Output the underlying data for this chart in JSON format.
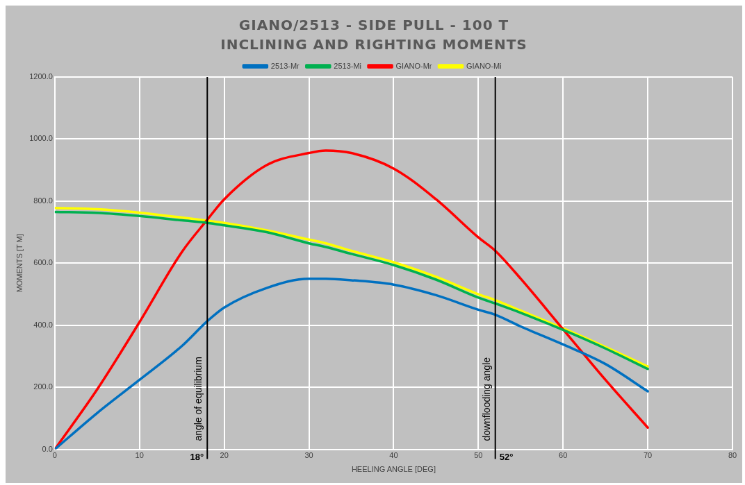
{
  "chart_data": {
    "type": "line",
    "title": "GIANO/2513 - SIDE PULL - 100 T",
    "subtitle": "INCLINING AND RIGHTING MOMENTS",
    "xlabel": "HEELING ANGLE [DEG]",
    "ylabel": "MOMENTS [T M]",
    "x": [
      0,
      5,
      10,
      15,
      18,
      20,
      25,
      30,
      32,
      35,
      40,
      45,
      50,
      52,
      55,
      60,
      65,
      70
    ],
    "series": [
      {
        "name": "2513-Mr",
        "color": "#0070c0",
        "values": [
          0,
          117,
          224,
          333,
          413,
          457,
          520,
          550,
          550,
          545,
          531,
          497,
          450,
          434,
          396,
          338,
          275,
          187
        ]
      },
      {
        "name": "2513-Mi",
        "color": "#00b050",
        "values": [
          765,
          762,
          752,
          738,
          730,
          722,
          700,
          664,
          652,
          630,
          594,
          547,
          489,
          470,
          440,
          385,
          325,
          259
        ]
      },
      {
        "name": "GIANO-Mr",
        "color": "#ff0000",
        "values": [
          0,
          193,
          410,
          636,
          740,
          806,
          916,
          955,
          963,
          955,
          905,
          806,
          683,
          640,
          550,
          387,
          224,
          70
        ]
      },
      {
        "name": "GIANO-Mi",
        "color": "#ffff00",
        "values": [
          778,
          774,
          763,
          747,
          737,
          730,
          706,
          676,
          664,
          640,
          603,
          556,
          500,
          481,
          447,
          390,
          330,
          267
        ]
      }
    ],
    "xlim": [
      0,
      80
    ],
    "xticks": [
      0,
      10,
      20,
      30,
      40,
      50,
      60,
      70,
      80
    ],
    "ylim": [
      0,
      1200
    ],
    "yticks": [
      {
        "value": 0,
        "label": "0.0"
      },
      {
        "value": 200,
        "label": "200.0"
      },
      {
        "value": 400,
        "label": "400.0"
      },
      {
        "value": 600,
        "label": "600.0"
      },
      {
        "value": 800,
        "label": "800.0"
      },
      {
        "value": 1000,
        "label": "1000.0"
      },
      {
        "value": 1200,
        "label": "1200.0"
      }
    ],
    "ref_lines": [
      {
        "axis": "x",
        "value": 18,
        "label": "angle of equilibrium",
        "color": "#000000"
      },
      {
        "axis": "x",
        "value": 52,
        "label": "downflooding angle",
        "color": "#000000"
      }
    ],
    "annotations": [
      {
        "text": "18°",
        "x": 18,
        "y": 0
      },
      {
        "text": "52°",
        "x": 52,
        "y": 0
      }
    ],
    "grid": true,
    "legend": "top",
    "marker": "none",
    "line_style": "solid"
  }
}
